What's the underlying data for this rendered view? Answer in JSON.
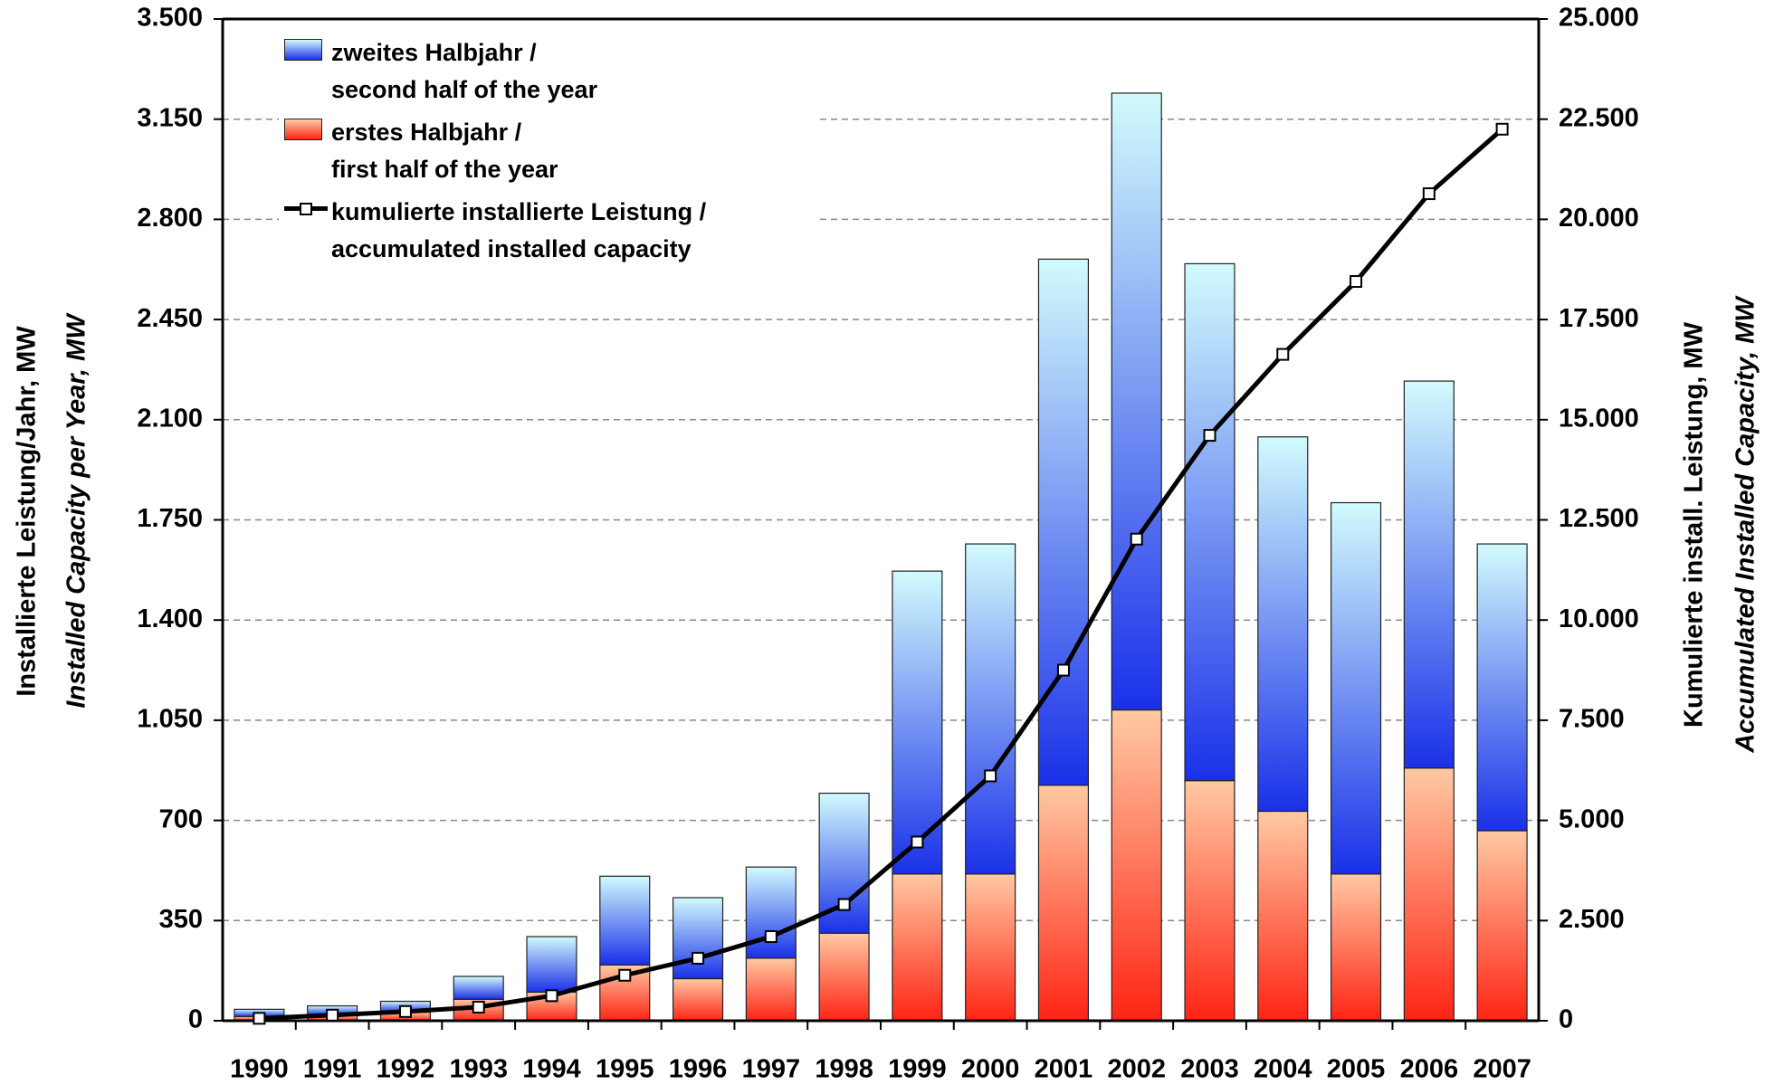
{
  "chart_data": {
    "type": "bar",
    "stacked": true,
    "categories": [
      "1990",
      "1991",
      "1992",
      "1993",
      "1994",
      "1995",
      "1996",
      "1997",
      "1998",
      "1999",
      "2000",
      "2001",
      "2002",
      "2003",
      "2004",
      "2005",
      "2006",
      "2007"
    ],
    "series": [
      {
        "name": "zweites Halbjahr /\nsecond half of the year",
        "type": "bar",
        "color": "#1a30e8",
        "color_light": "#d2fbfd",
        "values": [
          25,
          32,
          38,
          80,
          194,
          310,
          283,
          318,
          489,
          1058,
          1153,
          1838,
          2155,
          1806,
          1308,
          1297,
          1352,
          1002
        ]
      },
      {
        "name": "erstes Halbjahr /\nfirst half of the year",
        "type": "bar",
        "color": "#ff2414",
        "color_light": "#ffc9a3",
        "values": [
          15,
          20,
          30,
          75,
          100,
          195,
          147,
          219,
          306,
          513,
          513,
          823,
          1086,
          839,
          732,
          513,
          883,
          664
        ]
      },
      {
        "name": "kumulierte installierte Leistung /\naccumulated installed capacity",
        "type": "line",
        "axis": "y2",
        "color": "#000000",
        "values": [
          60,
          140,
          230,
          340,
          625,
          1135,
          1560,
          2100,
          2900,
          4460,
          6110,
          8750,
          12020,
          14610,
          16630,
          18450,
          20640,
          22250
        ]
      }
    ],
    "ylabel": [
      "Installierte Leistung/Jahr, MW",
      "Installed Capacity per Year, MW"
    ],
    "y2label": [
      "Kumulierte install. Leistung, MW",
      "Accumulated Installed Capacity, MW"
    ],
    "ylim": [
      0,
      3500
    ],
    "yticks": [
      0,
      350,
      700,
      {
        "value": 1050,
        "label": "1.050"
      },
      {
        "value": 1400,
        "label": "1.400"
      },
      {
        "value": 1750,
        "label": "1.750"
      },
      {
        "value": 2100,
        "label": "2.100"
      },
      {
        "value": 2450,
        "label": "2.450"
      },
      {
        "value": 2800,
        "label": "2.800"
      },
      {
        "value": 3150,
        "label": "3.150"
      },
      {
        "value": 3500,
        "label": "3.500"
      }
    ],
    "y2lim": [
      0,
      25000
    ],
    "y2ticks": [
      0,
      {
        "value": 2500,
        "label": "2.500"
      },
      {
        "value": 5000,
        "label": "5.000"
      },
      {
        "value": 7500,
        "label": "7.500"
      },
      {
        "value": 10000,
        "label": "10.000"
      },
      {
        "value": 12500,
        "label": "12.500"
      },
      {
        "value": 15000,
        "label": "15.000"
      },
      {
        "value": 17500,
        "label": "17.500"
      },
      {
        "value": 20000,
        "label": "20.000"
      },
      {
        "value": 22500,
        "label": "22.500"
      },
      {
        "value": 25000,
        "label": "25.000"
      }
    ],
    "grid": true
  }
}
